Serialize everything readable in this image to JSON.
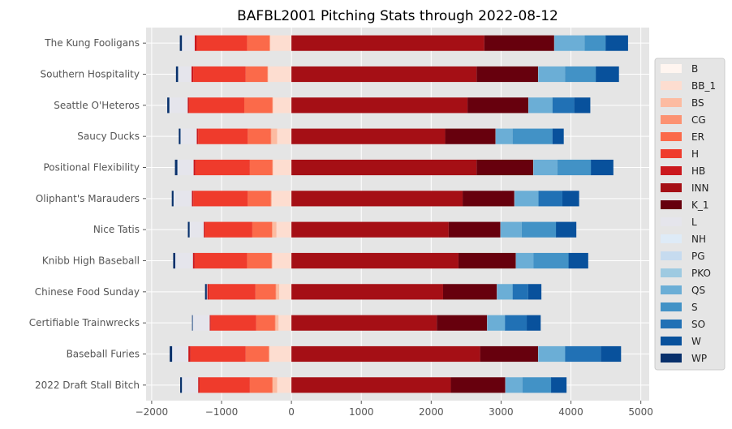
{
  "chart_data": {
    "type": "bar",
    "orientation": "horizontal",
    "stacked": true,
    "title": "BAFBL2001 Pitching Stats through 2022-08-12",
    "xlabel": "",
    "ylabel": "",
    "xlim": [
      -2080,
      5120
    ],
    "xticks": [
      -2000,
      -1000,
      0,
      1000,
      2000,
      3000,
      4000,
      5000
    ],
    "xtick_labels": [
      "−2000",
      "−1000",
      "0",
      "1000",
      "2000",
      "3000",
      "4000",
      "5000"
    ],
    "grid": true,
    "legend_position": "right",
    "categories": [
      "The Kung Fooligans",
      "Southern Hospitality",
      "Seattle O'Heteros",
      "Saucy Ducks",
      "Positional Flexibility",
      "Oliphant's Marauders",
      "Nice Tatis",
      "Knibb High Baseball",
      "Chinese Food Sunday",
      "Certifiable Trainwrecks",
      "Baseball Furies",
      "2022 Draft Stall Bitch"
    ],
    "series": [
      {
        "name": "B",
        "color": "#fff5f0",
        "values": [
          -5,
          -5,
          -5,
          -5,
          -5,
          -5,
          -5,
          -5,
          -5,
          -5,
          -5,
          -5
        ]
      },
      {
        "name": "BB_1",
        "color": "#fdddd0",
        "values": [
          -300,
          -330,
          -260,
          -200,
          -260,
          -280,
          -210,
          -270,
          -170,
          -180,
          -310,
          -200
        ]
      },
      {
        "name": "BS",
        "color": "#fcbba1",
        "values": [
          -5,
          -5,
          -5,
          -85,
          -5,
          -5,
          -60,
          -5,
          -45,
          -45,
          -5,
          -65
        ]
      },
      {
        "name": "CG",
        "color": "#fc9272",
        "values": [
          -5,
          -5,
          -5,
          -5,
          -5,
          -5,
          -5,
          -5,
          -5,
          -5,
          -5,
          -5
        ]
      },
      {
        "name": "ER",
        "color": "#fb6a4a",
        "values": [
          -320,
          -310,
          -400,
          -330,
          -320,
          -330,
          -280,
          -350,
          -290,
          -270,
          -330,
          -320
        ]
      },
      {
        "name": "H",
        "color": "#ef3b2c",
        "values": [
          -720,
          -750,
          -790,
          -710,
          -780,
          -780,
          -680,
          -750,
          -670,
          -650,
          -790,
          -720
        ]
      },
      {
        "name": "HB",
        "color": "#cb181d",
        "values": [
          -30,
          -25,
          -20,
          -20,
          -25,
          -20,
          -15,
          -25,
          -20,
          -15,
          -30,
          -20
        ]
      },
      {
        "name": "INN",
        "color": "#a50f15",
        "values": [
          2760,
          2650,
          2520,
          2200,
          2650,
          2450,
          2250,
          2390,
          2170,
          2080,
          2700,
          2280
        ]
      },
      {
        "name": "K_1",
        "color": "#67000d",
        "values": [
          1000,
          880,
          870,
          720,
          810,
          740,
          740,
          820,
          770,
          720,
          830,
          780
        ]
      },
      {
        "name": "L",
        "color": "#e5e5ec",
        "values": [
          -180,
          -190,
          -260,
          -230,
          -230,
          -260,
          -200,
          -250,
          -4,
          -240,
          -230,
          -230
        ]
      },
      {
        "name": "NH",
        "color": "#deebf7",
        "values": [
          -2,
          -2,
          -2,
          -2,
          -2,
          -2,
          -2,
          -2,
          -2,
          -2,
          -2,
          -2
        ]
      },
      {
        "name": "PG",
        "color": "#c6dbef",
        "values": [
          0,
          0,
          0,
          0,
          0,
          0,
          0,
          0,
          0,
          0,
          0,
          0
        ]
      },
      {
        "name": "PKO",
        "color": "#9ecae1",
        "values": [
          5,
          5,
          5,
          5,
          5,
          5,
          5,
          5,
          5,
          5,
          5,
          5
        ]
      },
      {
        "name": "QS",
        "color": "#6baed6",
        "values": [
          430,
          380,
          340,
          240,
          340,
          340,
          300,
          250,
          220,
          250,
          380,
          240
        ]
      },
      {
        "name": "S",
        "color": "#4292c6",
        "values": [
          300,
          440,
          2,
          570,
          480,
          2,
          490,
          500,
          2,
          2,
          2,
          410
        ]
      },
      {
        "name": "SO",
        "color": "#2171b5",
        "values": [
          2,
          2,
          310,
          2,
          2,
          340,
          2,
          2,
          220,
          310,
          510,
          2
        ]
      },
      {
        "name": "W",
        "color": "#08519c",
        "values": [
          320,
          330,
          230,
          160,
          320,
          240,
          290,
          280,
          190,
          200,
          290,
          220
        ]
      },
      {
        "name": "WP",
        "color": "#08306b",
        "values": [
          -30,
          -30,
          -30,
          -25,
          -35,
          -25,
          -25,
          -30,
          -25,
          -10,
          -35,
          -25
        ]
      }
    ]
  }
}
